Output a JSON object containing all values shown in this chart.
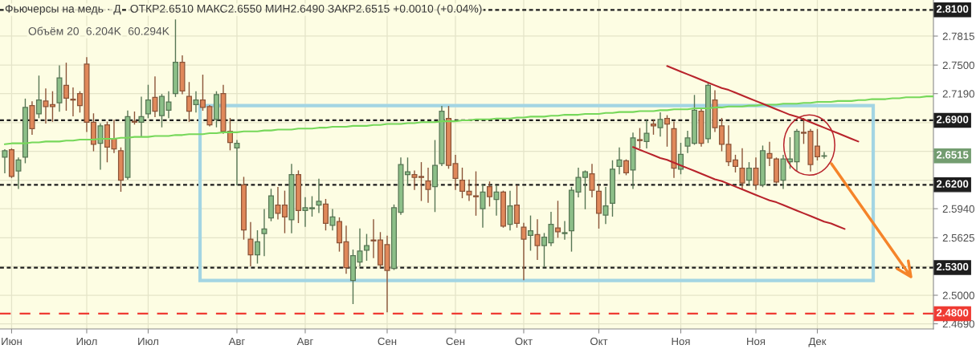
{
  "chart_data": {
    "type": "candlestick",
    "title": "Фьючерсы на медь · Д",
    "subtitle": "ОТКР2.6510 МАКС2.6550 МИН2.6490 ЗАКР2.6515 +0.0010 (+0.04%)",
    "annotations": [
      "Объём 20",
      "6.204K",
      "60.294K",
      "2.6515"
    ],
    "categories": [
      null,
      "Июн",
      null,
      null,
      null,
      null,
      null,
      null,
      null,
      null,
      null,
      null,
      "Июл",
      null,
      null,
      null,
      null,
      null,
      null,
      null,
      null,
      "Июл",
      null,
      null,
      null,
      null,
      null,
      null,
      null,
      null,
      null,
      null,
      null,
      null,
      "Авг",
      null,
      null,
      null,
      null,
      null,
      null,
      null,
      null,
      null,
      "Авг",
      null,
      null,
      null,
      null,
      null,
      null,
      null,
      null,
      null,
      null,
      null,
      "Сен",
      null,
      null,
      null,
      null,
      null,
      null,
      null,
      null,
      null,
      "Сен",
      null,
      null,
      null,
      null,
      null,
      null,
      null,
      null,
      null,
      "Окт",
      null,
      null,
      null,
      null,
      null,
      null,
      null,
      null,
      null,
      null,
      "Окт",
      null,
      null,
      null,
      null,
      null,
      null,
      null,
      null,
      null,
      null,
      null,
      "Ноя",
      null,
      null,
      null,
      null,
      null,
      null,
      null,
      null,
      null,
      null,
      "Ноя",
      null,
      null,
      null,
      null,
      null,
      null,
      null,
      null,
      "Дек",
      null,
      null,
      null,
      null,
      null,
      null,
      null,
      null,
      null,
      null,
      null,
      null,
      null,
      null,
      null,
      null,
      null
    ],
    "ylim": [
      2.4634,
      2.8207
    ],
    "yticks": [
      {
        "value": 2.7815,
        "label": "2.7815"
      },
      {
        "value": 2.75,
        "label": "2.7500"
      },
      {
        "value": 2.719,
        "label": "2.7190"
      },
      {
        "value": 2.6875,
        "label": null
      },
      {
        "value": 2.65625,
        "label": null
      },
      {
        "value": 2.625,
        "label": null
      },
      {
        "value": 2.594,
        "label": "2.5940"
      },
      {
        "value": 2.5625,
        "label": "2.5625"
      },
      {
        "value": 2.53125,
        "label": null
      },
      {
        "value": 2.5,
        "label": "2.5000"
      },
      {
        "value": 2.469,
        "label": "2.4690"
      }
    ],
    "grid": true,
    "ref_lines": [
      {
        "axis": "y",
        "value": 2.81,
        "label": "2.8100",
        "color": "#1e1e1e",
        "line_style": "dotted"
      },
      {
        "axis": "y",
        "value": 2.69,
        "label": "2.6900",
        "color": "#1e1e1e",
        "line_style": "dotted"
      },
      {
        "axis": "y",
        "value": 2.62,
        "label": "2.6200",
        "color": "#1e1e1e",
        "line_style": "dotted"
      },
      {
        "axis": "y",
        "value": 2.53,
        "label": "2.5300",
        "color": "#1e1e1e",
        "line_style": "dotted"
      },
      {
        "axis": "y",
        "value": 2.48,
        "label": "2.4800",
        "color": "#ef3b33",
        "line_style": "dashed"
      }
    ],
    "series": [
      {
        "ohlc": [
          [
            2.65,
            2.658,
            2.633,
            2.657
          ],
          [
            2.658,
            2.659,
            2.628,
            2.629
          ],
          [
            2.635,
            2.649,
            2.616,
            2.647
          ],
          [
            2.65,
            2.713,
            2.644,
            2.704
          ],
          [
            2.706,
            2.71,
            2.675,
            2.681
          ],
          [
            2.697,
            2.738,
            2.693,
            2.712
          ],
          [
            2.711,
            2.724,
            2.687,
            2.705
          ],
          [
            2.707,
            2.721,
            2.689,
            2.705
          ],
          [
            2.709,
            2.749,
            2.7,
            2.736
          ],
          [
            2.728,
            2.752,
            2.701,
            2.714
          ],
          [
            2.713,
            2.725,
            2.695,
            2.712
          ],
          [
            2.719,
            2.721,
            2.699,
            2.706
          ],
          [
            2.751,
            2.758,
            2.678,
            2.688
          ],
          [
            2.688,
            2.697,
            2.657,
            2.664
          ],
          [
            2.665,
            2.686,
            2.637,
            2.684
          ],
          [
            2.685,
            2.688,
            2.645,
            2.661
          ],
          [
            2.67,
            2.69,
            2.655,
            2.659
          ],
          [
            2.657,
            2.66,
            2.613,
            2.625
          ],
          [
            2.628,
            2.7,
            2.626,
            2.694
          ],
          [
            2.689,
            2.699,
            2.686,
            2.688
          ],
          [
            2.688,
            2.715,
            2.673,
            2.694
          ],
          [
            2.697,
            2.728,
            2.693,
            2.712
          ],
          [
            2.715,
            2.737,
            2.694,
            2.7
          ],
          [
            2.695,
            2.718,
            2.683,
            2.716
          ],
          [
            2.701,
            2.721,
            2.693,
            2.71
          ],
          [
            2.719,
            2.799,
            2.716,
            2.753
          ],
          [
            2.753,
            2.76,
            2.719,
            2.722
          ],
          [
            2.716,
            2.731,
            2.689,
            2.7
          ],
          [
            2.707,
            2.721,
            2.699,
            2.712
          ],
          [
            2.712,
            2.739,
            2.701,
            2.704
          ],
          [
            2.705,
            2.706,
            2.684,
            2.685
          ],
          [
            2.691,
            2.721,
            2.683,
            2.718
          ],
          [
            2.719,
            2.728,
            2.676,
            2.678
          ],
          [
            2.678,
            2.692,
            2.658,
            2.666
          ],
          [
            2.66,
            2.668,
            2.62,
            2.665
          ],
          [
            2.62,
            2.628,
            2.561,
            2.571
          ],
          [
            2.561,
            2.579,
            2.532,
            2.544
          ],
          [
            2.544,
            2.57,
            2.535,
            2.558
          ],
          [
            2.567,
            2.593,
            2.543,
            2.572
          ],
          [
            2.584,
            2.615,
            2.581,
            2.608
          ],
          [
            2.598,
            2.617,
            2.583,
            2.589
          ],
          [
            2.598,
            2.613,
            2.568,
            2.585
          ],
          [
            2.582,
            2.642,
            2.568,
            2.631
          ],
          [
            2.631,
            2.635,
            2.579,
            2.592
          ],
          [
            2.592,
            2.606,
            2.575,
            2.595
          ],
          [
            2.594,
            2.607,
            2.586,
            2.595
          ],
          [
            2.598,
            2.626,
            2.59,
            2.602
          ],
          [
            2.599,
            2.604,
            2.571,
            2.578
          ],
          [
            2.576,
            2.593,
            2.571,
            2.585
          ],
          [
            2.58,
            2.584,
            2.548,
            2.557
          ],
          [
            2.558,
            2.575,
            2.524,
            2.53
          ],
          [
            2.516,
            2.549,
            2.491,
            2.543
          ],
          [
            2.536,
            2.572,
            2.532,
            2.548
          ],
          [
            2.549,
            2.566,
            2.538,
            2.554
          ],
          [
            2.56,
            2.582,
            2.541,
            2.559
          ],
          [
            2.56,
            2.568,
            2.53,
            2.533
          ],
          [
            2.555,
            2.564,
            2.482,
            2.527
          ],
          [
            2.529,
            2.598,
            2.528,
            2.595
          ],
          [
            2.59,
            2.649,
            2.588,
            2.642
          ],
          [
            2.631,
            2.649,
            2.62,
            2.634
          ],
          [
            2.631,
            2.635,
            2.615,
            2.628
          ],
          [
            2.629,
            2.644,
            2.603,
            2.628
          ],
          [
            2.624,
            2.638,
            2.601,
            2.615
          ],
          [
            2.618,
            2.668,
            2.591,
            2.641
          ],
          [
            2.643,
            2.705,
            2.641,
            2.7
          ],
          [
            2.692,
            2.705,
            2.638,
            2.641
          ],
          [
            2.643,
            2.652,
            2.615,
            2.627
          ],
          [
            2.625,
            2.638,
            2.606,
            2.613
          ],
          [
            2.613,
            2.625,
            2.603,
            2.609
          ],
          [
            2.608,
            2.634,
            2.587,
            2.607
          ],
          [
            2.594,
            2.62,
            2.574,
            2.612
          ],
          [
            2.618,
            2.623,
            2.597,
            2.607
          ],
          [
            2.604,
            2.619,
            2.587,
            2.612
          ],
          [
            2.612,
            2.613,
            2.574,
            2.575
          ],
          [
            2.577,
            2.613,
            2.571,
            2.597
          ],
          [
            2.598,
            2.619,
            2.574,
            2.578
          ],
          [
            2.574,
            2.578,
            2.517,
            2.561
          ],
          [
            2.565,
            2.586,
            2.549,
            2.57
          ],
          [
            2.566,
            2.582,
            2.539,
            2.554
          ],
          [
            2.554,
            2.567,
            2.531,
            2.563
          ],
          [
            2.557,
            2.59,
            2.554,
            2.577
          ],
          [
            2.573,
            2.602,
            2.563,
            2.569
          ],
          [
            2.567,
            2.58,
            2.561,
            2.568
          ],
          [
            2.57,
            2.617,
            2.548,
            2.614
          ],
          [
            2.612,
            2.638,
            2.607,
            2.628
          ],
          [
            2.628,
            2.635,
            2.594,
            2.634
          ],
          [
            2.632,
            2.642,
            2.607,
            2.614
          ],
          [
            2.613,
            2.62,
            2.573,
            2.589
          ],
          [
            2.587,
            2.617,
            2.578,
            2.597
          ],
          [
            2.6,
            2.646,
            2.586,
            2.637
          ],
          [
            2.64,
            2.66,
            2.632,
            2.647
          ],
          [
            2.646,
            2.647,
            2.631,
            2.633
          ],
          [
            2.636,
            2.676,
            2.616,
            2.671
          ],
          [
            2.669,
            2.681,
            2.66,
            2.668
          ],
          [
            2.667,
            2.69,
            2.66,
            2.676
          ],
          [
            2.686,
            2.69,
            2.675,
            2.684
          ],
          [
            2.682,
            2.698,
            2.673,
            2.691
          ],
          [
            2.692,
            2.695,
            2.662,
            2.686
          ],
          [
            2.681,
            2.688,
            2.628,
            2.638
          ],
          [
            2.637,
            2.665,
            2.632,
            2.653
          ],
          [
            2.662,
            2.678,
            2.655,
            2.671
          ],
          [
            2.665,
            2.717,
            2.664,
            2.701
          ],
          [
            2.7,
            2.703,
            2.662,
            2.665
          ],
          [
            2.67,
            2.731,
            2.666,
            2.728
          ],
          [
            2.712,
            2.722,
            2.678,
            2.682
          ],
          [
            2.684,
            2.692,
            2.657,
            2.664
          ],
          [
            2.664,
            2.684,
            2.641,
            2.645
          ],
          [
            2.647,
            2.652,
            2.634,
            2.64
          ],
          [
            2.638,
            2.659,
            2.615,
            2.622
          ],
          [
            2.625,
            2.644,
            2.62,
            2.638
          ],
          [
            2.638,
            2.649,
            2.615,
            2.62
          ],
          [
            2.62,
            2.662,
            2.618,
            2.657
          ],
          [
            2.654,
            2.666,
            2.641,
            2.649
          ],
          [
            2.648,
            2.649,
            2.622,
            2.623
          ],
          [
            2.625,
            2.652,
            2.616,
            2.648
          ],
          [
            2.645,
            2.671,
            2.638,
            2.648
          ],
          [
            2.645,
            2.68,
            2.636,
            2.678
          ],
          [
            2.677,
            2.692,
            2.665,
            2.676
          ],
          [
            2.678,
            2.68,
            2.635,
            2.642
          ],
          [
            2.662,
            2.68,
            2.647,
            2.6505
          ],
          [
            2.651,
            2.655,
            2.649,
            2.6515
          ],
          null,
          null,
          null,
          null,
          null,
          null,
          null,
          null,
          null,
          null,
          null,
          null,
          null,
          null,
          null,
          null
        ],
        "colors": [
          "#8cbf88",
          "#e0885a",
          "#8cbf88",
          "#8cbf88",
          "#e0885a",
          "#8cbf88",
          "#e0885a",
          "#e0885a",
          "#8cbf88",
          "#e0885a",
          "#e0885a",
          "#e0885a",
          "#e0885a",
          "#e0885a",
          "#8cbf88",
          "#e0885a",
          "#e0885a",
          "#e0885a",
          "#8cbf88",
          "#e0885a",
          "#8cbf88",
          "#8cbf88",
          "#e0885a",
          "#8cbf88",
          "#8cbf88",
          "#8cbf88",
          "#e0885a",
          "#e0885a",
          "#8cbf88",
          "#e0885a",
          "#e0885a",
          "#8cbf88",
          "#e0885a",
          "#e0885a",
          "#8cbf88",
          "#e0885a",
          "#e0885a",
          "#8cbf88",
          "#8cbf88",
          "#8cbf88",
          "#e0885a",
          "#e0885a",
          "#8cbf88",
          "#e0885a",
          "#8cbf88",
          "#8cbf88",
          "#8cbf88",
          "#e0885a",
          "#8cbf88",
          "#e0885a",
          "#e0885a",
          "#8cbf88",
          "#8cbf88",
          "#8cbf88",
          "#e0885a",
          "#e0885a",
          "#e0885a",
          "#8cbf88",
          "#8cbf88",
          "#8cbf88",
          "#e0885a",
          "#e0885a",
          "#e0885a",
          "#8cbf88",
          "#8cbf88",
          "#e0885a",
          "#e0885a",
          "#e0885a",
          "#e0885a",
          "#e0885a",
          "#8cbf88",
          "#e0885a",
          "#8cbf88",
          "#e0885a",
          "#8cbf88",
          "#e0885a",
          "#e0885a",
          "#8cbf88",
          "#e0885a",
          "#8cbf88",
          "#8cbf88",
          "#e0885a",
          "#8cbf88",
          "#8cbf88",
          "#8cbf88",
          "#8cbf88",
          "#e0885a",
          "#e0885a",
          "#8cbf88",
          "#8cbf88",
          "#8cbf88",
          "#e0885a",
          "#8cbf88",
          "#e0885a",
          "#8cbf88",
          "#e0885a",
          "#8cbf88",
          "#e0885a",
          "#e0885a",
          "#8cbf88",
          "#8cbf88",
          "#8cbf88",
          "#e0885a",
          "#8cbf88",
          "#e0885a",
          "#e0885a",
          "#e0885a",
          "#e0885a",
          "#e0885a",
          "#8cbf88",
          "#e0885a",
          "#8cbf88",
          "#e0885a",
          "#e0885a",
          "#8cbf88",
          "#8cbf88",
          "#8cbf88",
          "#e0885a",
          "#e0885a",
          "#e0885a",
          "#8cbf88",
          null,
          null,
          null,
          null,
          null,
          null,
          null,
          null,
          null,
          null,
          null,
          null,
          null,
          null,
          null,
          null
        ]
      },
      {
        "type": "line",
        "color": "#76d85a",
        "values": [
          2.664,
          2.665,
          2.665,
          2.665,
          2.666,
          2.666,
          2.667,
          2.667,
          2.667,
          2.668,
          2.668,
          2.669,
          2.669,
          2.669,
          2.67,
          2.67,
          2.67,
          2.671,
          2.671,
          2.672,
          2.672,
          2.672,
          2.673,
          2.673,
          2.673,
          2.674,
          2.674,
          2.675,
          2.675,
          2.675,
          2.676,
          2.676,
          2.677,
          2.677,
          2.677,
          2.678,
          2.678,
          2.678,
          2.679,
          2.679,
          2.68,
          2.68,
          2.68,
          2.681,
          2.681,
          2.681,
          2.682,
          2.682,
          2.683,
          2.683,
          2.683,
          2.684,
          2.684,
          2.684,
          2.685,
          2.685,
          2.686,
          2.686,
          2.686,
          2.687,
          2.687,
          2.688,
          2.688,
          2.688,
          2.689,
          2.689,
          2.689,
          2.69,
          2.69,
          2.691,
          2.691,
          2.691,
          2.692,
          2.692,
          2.692,
          2.693,
          2.693,
          2.694,
          2.694,
          2.694,
          2.695,
          2.695,
          2.696,
          2.696,
          2.696,
          2.697,
          2.697,
          2.697,
          2.698,
          2.698,
          2.699,
          2.699,
          2.699,
          2.7,
          2.7,
          2.7,
          2.701,
          2.701,
          2.702,
          2.702,
          2.702,
          2.703,
          2.703,
          2.703,
          2.704,
          2.704,
          2.705,
          2.705,
          2.705,
          2.706,
          2.706,
          2.707,
          2.707,
          2.707,
          2.708,
          2.708,
          2.708,
          2.709,
          2.709,
          2.71,
          2.71,
          2.71,
          2.711,
          2.711,
          2.711,
          2.712,
          2.712,
          2.713,
          2.713,
          2.713,
          2.714,
          2.714,
          2.715,
          2.715,
          2.715,
          2.716,
          2.716
        ]
      },
      {
        "type": "line",
        "color": "#b8232b",
        "values": [
          null,
          null,
          null,
          null,
          null,
          null,
          null,
          null,
          null,
          null,
          null,
          null,
          null,
          null,
          null,
          null,
          null,
          null,
          null,
          null,
          null,
          null,
          null,
          null,
          null,
          null,
          null,
          null,
          null,
          null,
          null,
          null,
          null,
          null,
          null,
          null,
          null,
          null,
          null,
          null,
          null,
          null,
          null,
          null,
          null,
          null,
          null,
          null,
          null,
          null,
          null,
          null,
          null,
          null,
          null,
          null,
          null,
          null,
          null,
          null,
          null,
          null,
          null,
          null,
          null,
          null,
          null,
          null,
          null,
          null,
          null,
          null,
          null,
          null,
          null,
          null,
          null,
          null,
          null,
          null,
          null,
          null,
          null,
          null,
          null,
          null,
          null,
          null,
          null,
          null,
          null,
          null,
          null,
          null,
          null,
          null,
          null,
          2.749,
          2.746,
          2.743,
          2.74,
          2.737,
          2.734,
          2.731,
          2.728,
          2.725,
          2.723,
          2.72,
          2.717,
          2.714,
          2.711,
          2.708,
          2.705,
          2.702,
          2.699,
          2.696,
          2.694,
          2.691,
          2.688,
          2.685,
          2.682,
          2.679,
          2.676,
          2.673,
          2.67,
          2.667,
          null,
          null,
          null,
          null,
          null,
          null,
          null,
          null,
          null,
          null,
          null
        ]
      },
      {
        "type": "line",
        "color": "#b8232b",
        "values": [
          null,
          null,
          null,
          null,
          null,
          null,
          null,
          null,
          null,
          null,
          null,
          null,
          null,
          null,
          null,
          null,
          null,
          null,
          null,
          null,
          null,
          null,
          null,
          null,
          null,
          null,
          null,
          null,
          null,
          null,
          null,
          null,
          null,
          null,
          null,
          null,
          null,
          null,
          null,
          null,
          null,
          null,
          null,
          null,
          null,
          null,
          null,
          null,
          null,
          null,
          null,
          null,
          null,
          null,
          null,
          null,
          null,
          null,
          null,
          null,
          null,
          null,
          null,
          null,
          null,
          null,
          null,
          null,
          null,
          null,
          null,
          null,
          null,
          null,
          null,
          null,
          null,
          null,
          null,
          null,
          null,
          null,
          null,
          null,
          null,
          null,
          null,
          null,
          null,
          null,
          null,
          null,
          2.661,
          2.658,
          2.655,
          2.652,
          2.649,
          2.647,
          2.644,
          2.641,
          2.638,
          2.635,
          2.632,
          2.629,
          2.626,
          2.624,
          2.621,
          2.618,
          2.615,
          2.612,
          2.609,
          2.606,
          2.603,
          2.601,
          2.598,
          2.595,
          2.592,
          2.589,
          2.586,
          2.583,
          2.58,
          2.578,
          2.575,
          2.572,
          null,
          null,
          null,
          null,
          null,
          null,
          null,
          null,
          null,
          null,
          null,
          null,
          null
        ]
      }
    ]
  }
}
